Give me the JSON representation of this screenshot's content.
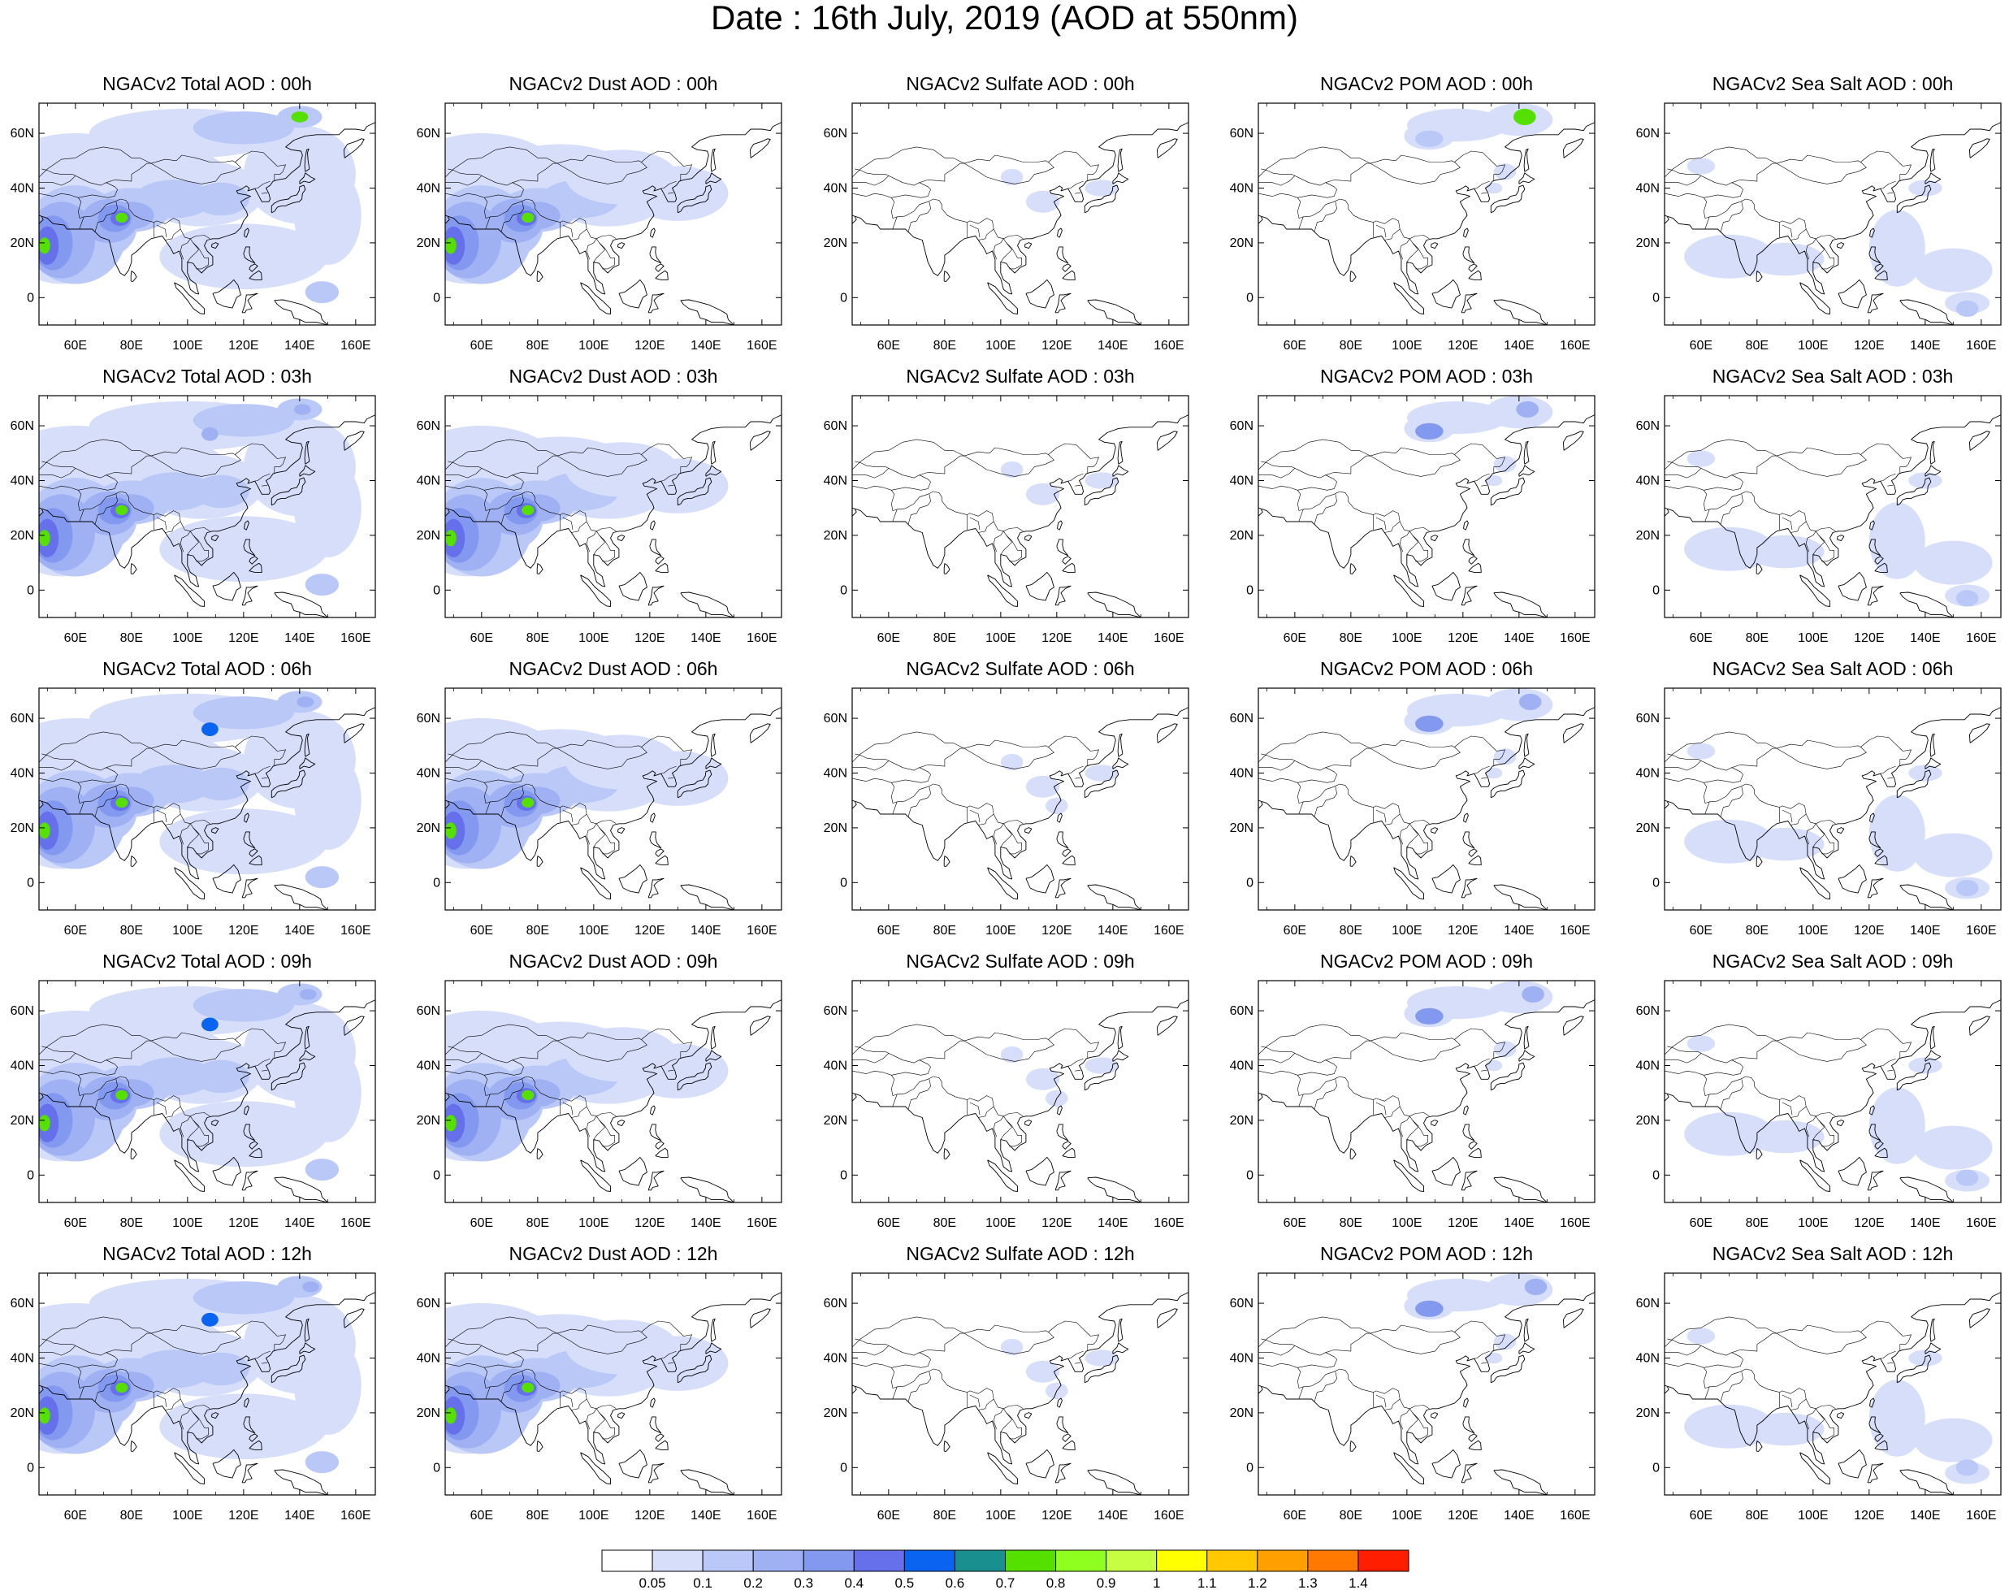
{
  "title": "Date : 16th July, 2019 (AOD at 550nm)",
  "lat_labels": [
    "60N",
    "40N",
    "20N",
    "0"
  ],
  "lon_labels": [
    "60E",
    "80E",
    "100E",
    "120E",
    "140E",
    "160E"
  ],
  "panels": [
    {
      "title": "NGACv2 Total AOD : 00h",
      "species": "total",
      "hour": 0
    },
    {
      "title": "NGACv2 Dust AOD : 00h",
      "species": "dust",
      "hour": 0
    },
    {
      "title": "NGACv2 Sulfate AOD : 00h",
      "species": "sulfate",
      "hour": 0
    },
    {
      "title": "NGACv2 POM AOD : 00h",
      "species": "pom",
      "hour": 0
    },
    {
      "title": "NGACv2 Sea Salt AOD : 00h",
      "species": "seasalt",
      "hour": 0
    },
    {
      "title": "NGACv2 Total AOD : 03h",
      "species": "total",
      "hour": 3
    },
    {
      "title": "NGACv2 Dust AOD : 03h",
      "species": "dust",
      "hour": 3
    },
    {
      "title": "NGACv2 Sulfate AOD : 03h",
      "species": "sulfate",
      "hour": 3
    },
    {
      "title": "NGACv2 POM AOD : 03h",
      "species": "pom",
      "hour": 3
    },
    {
      "title": "NGACv2 Sea Salt AOD : 03h",
      "species": "seasalt",
      "hour": 3
    },
    {
      "title": "NGACv2 Total AOD : 06h",
      "species": "total",
      "hour": 6
    },
    {
      "title": "NGACv2 Dust AOD : 06h",
      "species": "dust",
      "hour": 6
    },
    {
      "title": "NGACv2 Sulfate AOD : 06h",
      "species": "sulfate",
      "hour": 6
    },
    {
      "title": "NGACv2 POM AOD : 06h",
      "species": "pom",
      "hour": 6
    },
    {
      "title": "NGACv2 Sea Salt AOD : 06h",
      "species": "seasalt",
      "hour": 6
    },
    {
      "title": "NGACv2 Total AOD : 09h",
      "species": "total",
      "hour": 9
    },
    {
      "title": "NGACv2 Dust AOD : 09h",
      "species": "dust",
      "hour": 9
    },
    {
      "title": "NGACv2 Sulfate AOD : 09h",
      "species": "sulfate",
      "hour": 9
    },
    {
      "title": "NGACv2 POM AOD : 09h",
      "species": "pom",
      "hour": 9
    },
    {
      "title": "NGACv2 Sea Salt  AOD : 09h",
      "species": "seasalt",
      "hour": 9
    },
    {
      "title": "NGACv2 Total AOD  : 12h",
      "species": "total",
      "hour": 12
    },
    {
      "title": "NGACv2 Dust AOD : 12h",
      "species": "dust",
      "hour": 12
    },
    {
      "title": "NGACv2 Sulfate AOD : 12h",
      "species": "sulfate",
      "hour": 12
    },
    {
      "title": "NGACv2 POM  AOD : 12h",
      "species": "pom",
      "hour": 12
    },
    {
      "title": "NGACv2 Sea Salt  AOD : 12h",
      "species": "seasalt",
      "hour": 12
    }
  ],
  "colorbar": {
    "labels": [
      "0.05",
      "0.1",
      "0.2",
      "0.3",
      "0.4",
      "0.5",
      "0.6",
      "0.7",
      "0.8",
      "0.9",
      "1",
      "1.1",
      "1.2",
      "1.3",
      "1.4"
    ],
    "colors": [
      "#ffffff",
      "#d6defa",
      "#bac8f7",
      "#9fb1f3",
      "#8299ef",
      "#6570ea",
      "#0b64f0",
      "#1a8f8f",
      "#55e000",
      "#8fff20",
      "#c6ff42",
      "#ffff00",
      "#ffc800",
      "#ffa000",
      "#ff7800",
      "#ff1e00"
    ]
  }
}
